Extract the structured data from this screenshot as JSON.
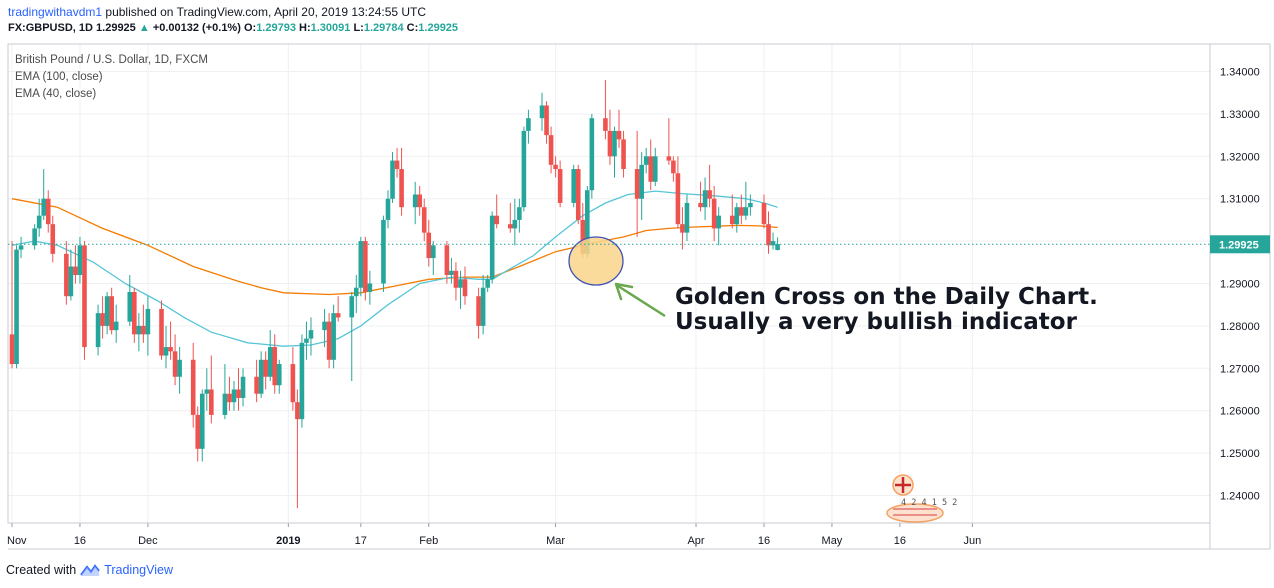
{
  "header": {
    "user": "tradingwithavdm1",
    "published": " published on TradingView.com, April 20, 2019 13:24:55 UTC",
    "symbol": "FX:GBPUSD, 1D",
    "close_val": "1.29925",
    "change_arrow": "▲",
    "change": "+0.00132 (+0.1%)",
    "o_label": "O:",
    "o_val": "1.29793",
    "h_label": "H:",
    "h_val": "1.30091",
    "l_label": "L:",
    "l_val": "1.29784",
    "c_label": "C:",
    "c_val": "1.29925"
  },
  "legend": {
    "title": "British Pound / U.S. Dollar, 1D, FXCM",
    "ema100": "EMA (100, close)",
    "ema40": "EMA (40, close)"
  },
  "footer": {
    "created": "Created with",
    "brand": "TradingView"
  },
  "colors": {
    "up": "#26a69a",
    "down": "#ef5350",
    "ema100": "#f57c00",
    "ema40": "#56c6d6",
    "price_tag": "#26a69a",
    "highlight_fill": "#f9d58a",
    "highlight_stroke": "#3f51b5",
    "arrow": "#6aa84f"
  },
  "chart_data": {
    "type": "candlestick",
    "symbol": "GBPUSD",
    "ylim": [
      1.2335,
      1.3465
    ],
    "y_ticks": [
      "1.24000",
      "1.25000",
      "1.26000",
      "1.27000",
      "1.28000",
      "1.29000",
      "1.30000",
      "1.31000",
      "1.32000",
      "1.33000",
      "1.34000"
    ],
    "x_ticks": [
      {
        "label": "Nov",
        "day": 0
      },
      {
        "label": "16",
        "day": 15
      },
      {
        "label": "Dec",
        "day": 30
      },
      {
        "label": "2019",
        "day": 61
      },
      {
        "label": "17",
        "day": 77
      },
      {
        "label": "Feb",
        "day": 92
      },
      {
        "label": "Mar",
        "day": 120
      },
      {
        "label": "Apr",
        "day": 151
      },
      {
        "label": "16",
        "day": 166
      },
      {
        "label": "May",
        "day": 181
      },
      {
        "label": "16",
        "day": 196
      },
      {
        "label": "Jun",
        "day": 212
      }
    ],
    "last_price": "1.29925",
    "annotation": "Golden Cross on the Daily Chart.\nUsually a very bullish indicator",
    "candles": [
      [
        0,
        1.278,
        1.3,
        1.27,
        1.271
      ],
      [
        1,
        1.271,
        1.299,
        1.27,
        1.298
      ],
      [
        2,
        1.298,
        1.301,
        1.296,
        1.299
      ],
      [
        5,
        1.299,
        1.304,
        1.298,
        1.303
      ],
      [
        6,
        1.303,
        1.31,
        1.301,
        1.306
      ],
      [
        7,
        1.306,
        1.317,
        1.305,
        1.31
      ],
      [
        8,
        1.31,
        1.312,
        1.302,
        1.304
      ],
      [
        9,
        1.304,
        1.306,
        1.295,
        1.297
      ],
      [
        12,
        1.297,
        1.3,
        1.285,
        1.287
      ],
      [
        13,
        1.287,
        1.298,
        1.286,
        1.294
      ],
      [
        14,
        1.294,
        1.299,
        1.29,
        1.292
      ],
      [
        15,
        1.292,
        1.301,
        1.29,
        1.299
      ],
      [
        16,
        1.299,
        1.3,
        1.272,
        1.275
      ],
      [
        19,
        1.275,
        1.285,
        1.273,
        1.283
      ],
      [
        20,
        1.283,
        1.287,
        1.277,
        1.28
      ],
      [
        21,
        1.28,
        1.288,
        1.278,
        1.287
      ],
      [
        22,
        1.287,
        1.289,
        1.278,
        1.279
      ],
      [
        23,
        1.279,
        1.285,
        1.276,
        1.281
      ],
      [
        26,
        1.281,
        1.292,
        1.28,
        1.288
      ],
      [
        27,
        1.288,
        1.289,
        1.276,
        1.278
      ],
      [
        28,
        1.278,
        1.283,
        1.274,
        1.28
      ],
      [
        29,
        1.28,
        1.285,
        1.276,
        1.278
      ],
      [
        30,
        1.278,
        1.287,
        1.273,
        1.284
      ],
      [
        33,
        1.284,
        1.286,
        1.272,
        1.273
      ],
      [
        34,
        1.273,
        1.28,
        1.27,
        1.275
      ],
      [
        35,
        1.275,
        1.281,
        1.272,
        1.274
      ],
      [
        36,
        1.274,
        1.278,
        1.266,
        1.268
      ],
      [
        37,
        1.268,
        1.275,
        1.264,
        1.272
      ],
      [
        40,
        1.272,
        1.276,
        1.256,
        1.259
      ],
      [
        41,
        1.259,
        1.261,
        1.248,
        1.251
      ],
      [
        42,
        1.251,
        1.265,
        1.248,
        1.264
      ],
      [
        43,
        1.264,
        1.27,
        1.26,
        1.265
      ],
      [
        44,
        1.265,
        1.273,
        1.257,
        1.259
      ],
      [
        47,
        1.259,
        1.271,
        1.258,
        1.264
      ],
      [
        48,
        1.264,
        1.268,
        1.26,
        1.262
      ],
      [
        49,
        1.262,
        1.267,
        1.26,
        1.265
      ],
      [
        50,
        1.265,
        1.27,
        1.26,
        1.263
      ],
      [
        51,
        1.263,
        1.27,
        1.261,
        1.268
      ],
      [
        54,
        1.268,
        1.272,
        1.262,
        1.264
      ],
      [
        55,
        1.264,
        1.274,
        1.263,
        1.272
      ],
      [
        56,
        1.272,
        1.274,
        1.265,
        1.268
      ],
      [
        57,
        1.268,
        1.279,
        1.267,
        1.275
      ],
      [
        58,
        1.275,
        1.278,
        1.264,
        1.266
      ],
      [
        59,
        1.266,
        1.272,
        1.264,
        1.271
      ],
      [
        62,
        1.271,
        1.275,
        1.26,
        1.262
      ],
      [
        63,
        1.262,
        1.265,
        1.237,
        1.258
      ],
      [
        64,
        1.258,
        1.278,
        1.256,
        1.276
      ],
      [
        65,
        1.276,
        1.281,
        1.272,
        1.277
      ],
      [
        66,
        1.277,
        1.282,
        1.273,
        1.279
      ],
      [
        69,
        1.279,
        1.284,
        1.275,
        1.281
      ],
      [
        70,
        1.281,
        1.283,
        1.27,
        1.272
      ],
      [
        71,
        1.272,
        1.285,
        1.27,
        1.283
      ],
      [
        72,
        1.283,
        1.287,
        1.281,
        1.282
      ],
      [
        75,
        1.282,
        1.288,
        1.267,
        1.287
      ],
      [
        76,
        1.287,
        1.292,
        1.283,
        1.289
      ],
      [
        77,
        1.289,
        1.301,
        1.287,
        1.3
      ],
      [
        78,
        1.3,
        1.301,
        1.286,
        1.288
      ],
      [
        79,
        1.288,
        1.293,
        1.285,
        1.29
      ],
      [
        82,
        1.29,
        1.306,
        1.288,
        1.305
      ],
      [
        83,
        1.305,
        1.312,
        1.303,
        1.31
      ],
      [
        84,
        1.31,
        1.321,
        1.309,
        1.319
      ],
      [
        85,
        1.319,
        1.322,
        1.315,
        1.317
      ],
      [
        86,
        1.317,
        1.322,
        1.306,
        1.308
      ],
      [
        89,
        1.308,
        1.314,
        1.304,
        1.311
      ],
      [
        90,
        1.311,
        1.313,
        1.306,
        1.308
      ],
      [
        91,
        1.308,
        1.31,
        1.3,
        1.302
      ],
      [
        92,
        1.302,
        1.305,
        1.294,
        1.296
      ],
      [
        93,
        1.296,
        1.3,
        1.292,
        1.299
      ],
      [
        96,
        1.299,
        1.3,
        1.29,
        1.292
      ],
      [
        97,
        1.292,
        1.296,
        1.29,
        1.293
      ],
      [
        98,
        1.293,
        1.295,
        1.286,
        1.289
      ],
      [
        99,
        1.289,
        1.293,
        1.284,
        1.291
      ],
      [
        100,
        1.291,
        1.294,
        1.285,
        1.287
      ],
      [
        103,
        1.287,
        1.289,
        1.277,
        1.28
      ],
      [
        104,
        1.28,
        1.292,
        1.278,
        1.289
      ],
      [
        105,
        1.289,
        1.292,
        1.288,
        1.291
      ],
      [
        106,
        1.291,
        1.307,
        1.29,
        1.306
      ],
      [
        107,
        1.306,
        1.311,
        1.303,
        1.304
      ],
      [
        110,
        1.304,
        1.309,
        1.302,
        1.303
      ],
      [
        111,
        1.303,
        1.31,
        1.299,
        1.305
      ],
      [
        112,
        1.305,
        1.31,
        1.302,
        1.308
      ],
      [
        113,
        1.308,
        1.327,
        1.307,
        1.326
      ],
      [
        114,
        1.326,
        1.331,
        1.323,
        1.329
      ],
      [
        117,
        1.329,
        1.335,
        1.326,
        1.332
      ],
      [
        118,
        1.332,
        1.333,
        1.323,
        1.325
      ],
      [
        119,
        1.325,
        1.327,
        1.316,
        1.318
      ],
      [
        120,
        1.318,
        1.32,
        1.315,
        1.317
      ],
      [
        121,
        1.317,
        1.319,
        1.308,
        1.309
      ],
      [
        124,
        1.309,
        1.318,
        1.308,
        1.317
      ],
      [
        125,
        1.317,
        1.318,
        1.304,
        1.305
      ],
      [
        126,
        1.305,
        1.309,
        1.296,
        1.297
      ],
      [
        127,
        1.297,
        1.313,
        1.296,
        1.312
      ],
      [
        128,
        1.312,
        1.33,
        1.31,
        1.329
      ],
      [
        131,
        1.329,
        1.338,
        1.324,
        1.326
      ],
      [
        132,
        1.326,
        1.331,
        1.318,
        1.32
      ],
      [
        133,
        1.32,
        1.327,
        1.315,
        1.326
      ],
      [
        134,
        1.326,
        1.331,
        1.322,
        1.324
      ],
      [
        135,
        1.324,
        1.326,
        1.315,
        1.317
      ],
      [
        138,
        1.317,
        1.326,
        1.301,
        1.31
      ],
      [
        139,
        1.31,
        1.321,
        1.305,
        1.318
      ],
      [
        140,
        1.318,
        1.322,
        1.316,
        1.32
      ],
      [
        141,
        1.32,
        1.324,
        1.312,
        1.314
      ],
      [
        142,
        1.314,
        1.322,
        1.313,
        1.32
      ],
      [
        145,
        1.32,
        1.329,
        1.318,
        1.319
      ],
      [
        146,
        1.319,
        1.32,
        1.314,
        1.316
      ],
      [
        147,
        1.316,
        1.32,
        1.303,
        1.304
      ],
      [
        148,
        1.304,
        1.308,
        1.298,
        1.302
      ],
      [
        149,
        1.302,
        1.311,
        1.3,
        1.309
      ],
      [
        152,
        1.309,
        1.314,
        1.307,
        1.308
      ],
      [
        153,
        1.308,
        1.315,
        1.305,
        1.312
      ],
      [
        154,
        1.312,
        1.318,
        1.308,
        1.31
      ],
      [
        155,
        1.31,
        1.313,
        1.3,
        1.303
      ],
      [
        156,
        1.303,
        1.308,
        1.299,
        1.306
      ],
      [
        159,
        1.306,
        1.311,
        1.303,
        1.304
      ],
      [
        160,
        1.304,
        1.309,
        1.302,
        1.308
      ],
      [
        161,
        1.308,
        1.311,
        1.304,
        1.306
      ],
      [
        162,
        1.306,
        1.314,
        1.305,
        1.308
      ],
      [
        163,
        1.308,
        1.311,
        1.306,
        1.309
      ],
      [
        166,
        1.309,
        1.311,
        1.303,
        1.304
      ],
      [
        167,
        1.304,
        1.307,
        1.297,
        1.299
      ],
      [
        168,
        1.299,
        1.302,
        1.298,
        1.3
      ],
      [
        169,
        1.2979,
        1.3009,
        1.2978,
        1.2993
      ]
    ],
    "ema100": [
      [
        0,
        1.31
      ],
      [
        10,
        1.308
      ],
      [
        20,
        1.303
      ],
      [
        30,
        1.299
      ],
      [
        40,
        1.294
      ],
      [
        50,
        1.2905
      ],
      [
        55,
        1.289
      ],
      [
        60,
        1.2878
      ],
      [
        70,
        1.2874
      ],
      [
        77,
        1.2878
      ],
      [
        85,
        1.2895
      ],
      [
        92,
        1.291
      ],
      [
        100,
        1.2915
      ],
      [
        106,
        1.2915
      ],
      [
        112,
        1.294
      ],
      [
        120,
        1.2975
      ],
      [
        128,
        1.2995
      ],
      [
        135,
        1.301
      ],
      [
        140,
        1.3025
      ],
      [
        145,
        1.303
      ],
      [
        150,
        1.3033
      ],
      [
        155,
        1.3035
      ],
      [
        160,
        1.3037
      ],
      [
        165,
        1.3036
      ],
      [
        169,
        1.3032
      ]
    ],
    "ema40": [
      [
        0,
        1.299
      ],
      [
        5,
        1.3
      ],
      [
        10,
        1.299
      ],
      [
        18,
        1.295
      ],
      [
        25,
        1.29
      ],
      [
        32,
        1.286
      ],
      [
        38,
        1.282
      ],
      [
        44,
        1.2785
      ],
      [
        52,
        1.276
      ],
      [
        60,
        1.2752
      ],
      [
        66,
        1.2755
      ],
      [
        72,
        1.277
      ],
      [
        77,
        1.28
      ],
      [
        83,
        1.285
      ],
      [
        90,
        1.29
      ],
      [
        97,
        1.2915
      ],
      [
        103,
        1.291
      ],
      [
        106,
        1.291
      ],
      [
        110,
        1.2935
      ],
      [
        115,
        1.2965
      ],
      [
        120,
        1.301
      ],
      [
        126,
        1.306
      ],
      [
        131,
        1.309
      ],
      [
        136,
        1.311
      ],
      [
        142,
        1.3118
      ],
      [
        148,
        1.3112
      ],
      [
        155,
        1.3107
      ],
      [
        162,
        1.31
      ],
      [
        166,
        1.309
      ],
      [
        169,
        1.308
      ]
    ]
  }
}
